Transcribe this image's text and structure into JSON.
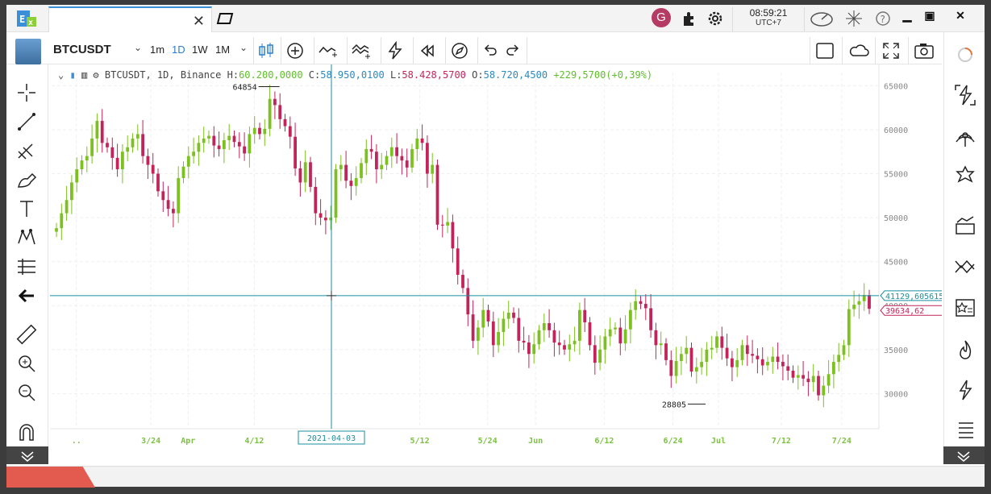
{
  "app": {
    "logo_text": "EX"
  },
  "titlebar": {
    "avatar_letter": "G",
    "time": "08:59:21",
    "timezone": "UTC+7"
  },
  "toolbar": {
    "symbol": "BTCUSDT",
    "intervals": [
      "1m",
      "1D",
      "1W",
      "1M"
    ],
    "active_interval": "1D"
  },
  "legend": {
    "symbol": "BTCUSDT",
    "interval": "1D",
    "exchange": "Binance",
    "h_label": "H:",
    "h_value": "60.200,0000",
    "c_label": "C:",
    "c_value": "58.950,0100",
    "l_label": "L:",
    "l_value": "58.428,5700",
    "o_label": "O:",
    "o_value": "58.720,4500",
    "change": "+229,5700(+0,39%)"
  },
  "chart_data": {
    "type": "candlestick",
    "title": "",
    "y_axis": {
      "ticks": [
        65000,
        60000,
        55000,
        50000,
        45000,
        40000,
        35000,
        30000
      ],
      "range": [
        26000,
        66500
      ],
      "position": "right"
    },
    "x_axis": {
      "tick_labels": [
        "..",
        "3/24",
        "Apr",
        "4/12",
        "5/12",
        "5/24",
        "Jun",
        "6/12",
        "6/24",
        "Jul",
        "7/12",
        "7/24"
      ]
    },
    "annotations": {
      "high_label": "64854",
      "low_label": "28805"
    },
    "crosshair": {
      "date_label": "2021-04-03",
      "price_label": "41129,6056152"
    },
    "last_price_label": "39634,62",
    "closes": [
      48800,
      50500,
      52000,
      54000,
      55500,
      56500,
      57000,
      59000,
      61000,
      58500,
      58000,
      56800,
      55500,
      57500,
      58000,
      59000,
      59500,
      57000,
      56000,
      55000,
      53000,
      52000,
      51000,
      50500,
      54500,
      55800,
      57000,
      57500,
      58500,
      59000,
      59300,
      58200,
      57800,
      58800,
      59300,
      58600,
      58100,
      57300,
      59500,
      60200,
      59500,
      60100,
      63500,
      62800,
      61200,
      60400,
      59200,
      55600,
      54000,
      56300,
      53500,
      50500,
      50000,
      49700,
      50000,
      55500,
      56000,
      54200,
      53600,
      54500,
      56200,
      57800,
      57500,
      55500,
      56000,
      57000,
      58000,
      57000,
      56500,
      55700,
      57800,
      59000,
      58500,
      55000,
      56000,
      49200,
      49100,
      49500,
      46500,
      43500,
      42000,
      39000,
      36000,
      37500,
      39500,
      38200,
      35500,
      37000,
      38500,
      39200,
      38600,
      36000,
      35800,
      34500,
      35600,
      37200,
      38000,
      37200,
      35800,
      35500,
      35000,
      35600,
      36000,
      39500,
      38100,
      35500,
      33500,
      35000,
      36500,
      37300,
      37500,
      35700,
      37300,
      39500,
      40500,
      40200,
      39700,
      37200,
      35500,
      35700,
      33800,
      32000,
      33700,
      34500,
      35200,
      32500,
      33000,
      33600,
      35000,
      35200,
      36500,
      35200,
      34000,
      33000,
      33800,
      35500,
      34500,
      34300,
      33900,
      33200,
      33600,
      34200,
      33600,
      33100,
      32600,
      31800,
      32100,
      31700,
      31300,
      32000,
      29800,
      30900,
      32200,
      33600,
      34400,
      35500,
      39600,
      40100,
      40500,
      41200,
      39634
    ]
  }
}
